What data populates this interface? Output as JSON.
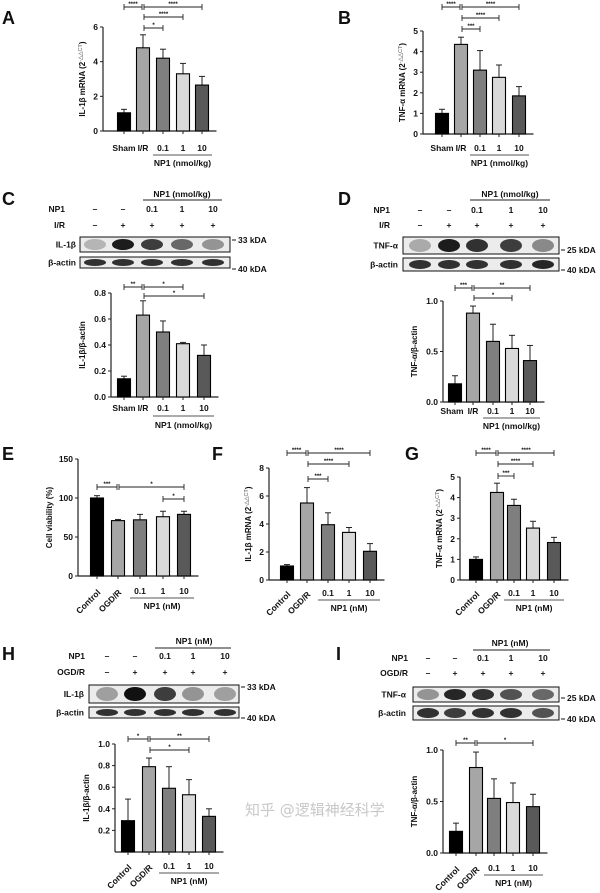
{
  "watermark": "知乎 @逻辑神经科学",
  "colors": {
    "bars": [
      "#000000",
      "#a6a6a6",
      "#7f7f7f",
      "#d9d9d9",
      "#595959"
    ],
    "edge": "#000000"
  },
  "chart_data": [
    {
      "panel": "A",
      "type": "bar",
      "categories": [
        "Sham",
        "I/R",
        "0.1",
        "1",
        "10"
      ],
      "group_label": "NP1 (nmol/kg)",
      "values": [
        1.05,
        4.8,
        4.2,
        3.3,
        2.65
      ],
      "errors": [
        0.2,
        0.75,
        0.52,
        0.6,
        0.5
      ],
      "ylabel": "IL-1β mRNA (2",
      "ylabel_sup": "-△△CT",
      "ylabel_end": ")",
      "ylim": [
        0,
        6
      ],
      "yticks": [
        "0",
        "2",
        "4",
        "6"
      ],
      "ytick_values": [
        0,
        2,
        4,
        6
      ],
      "significance": [
        {
          "from": 0,
          "to": 1,
          "label": "****",
          "row": 0
        },
        {
          "from": 1,
          "to": 4,
          "label": "****",
          "row": 0
        },
        {
          "from": 1,
          "to": 3,
          "label": "****",
          "row": 1
        },
        {
          "from": 1,
          "to": 2,
          "label": "*",
          "row": 2
        }
      ]
    },
    {
      "panel": "B",
      "type": "bar",
      "categories": [
        "Sham",
        "I/R",
        "0.1",
        "1",
        "10"
      ],
      "group_label": "NP1 (nmol/kg)",
      "values": [
        1.0,
        4.35,
        3.1,
        2.75,
        1.85
      ],
      "errors": [
        0.2,
        0.35,
        0.95,
        0.6,
        0.45
      ],
      "ylabel": "TNF-α mRNA (2",
      "ylabel_sup": "-△△CT",
      "ylabel_end": ")",
      "ylim": [
        0,
        5
      ],
      "yticks": [
        "0",
        "1",
        "2",
        "3",
        "4",
        "5"
      ],
      "ytick_values": [
        0,
        1,
        2,
        3,
        4,
        5
      ],
      "significance": [
        {
          "from": 0,
          "to": 1,
          "label": "****",
          "row": 0
        },
        {
          "from": 1,
          "to": 4,
          "label": "****",
          "row": 0
        },
        {
          "from": 1,
          "to": 3,
          "label": "****",
          "row": 1
        },
        {
          "from": 1,
          "to": 2,
          "label": "***",
          "row": 2
        }
      ]
    },
    {
      "panel": "C",
      "type": "bar",
      "categories": [
        "Sham",
        "I/R",
        "0.1",
        "1",
        "10"
      ],
      "group_label": "NP1 (nmol/kg)",
      "values": [
        0.14,
        0.63,
        0.5,
        0.41,
        0.32
      ],
      "errors": [
        0.02,
        0.11,
        0.085,
        0.01,
        0.08
      ],
      "ylabel": "IL-1β/β-actin",
      "ylim": [
        0,
        0.8
      ],
      "yticks": [
        "0.0",
        "0.2",
        "0.4",
        "0.6",
        "0.8"
      ],
      "ytick_values": [
        0,
        0.2,
        0.4,
        0.6,
        0.8
      ],
      "significance": [
        {
          "from": 0,
          "to": 1,
          "label": "**",
          "row": 0
        },
        {
          "from": 1,
          "to": 3,
          "label": "*",
          "row": 0
        },
        {
          "from": 1,
          "to": 4,
          "label": "*",
          "row": 1
        }
      ]
    },
    {
      "panel": "D",
      "type": "bar",
      "categories": [
        "Sham",
        "I/R",
        "0.1",
        "1",
        "10"
      ],
      "group_label": "NP1 (nmol/kg)",
      "values": [
        0.18,
        0.88,
        0.6,
        0.53,
        0.41
      ],
      "errors": [
        0.08,
        0.07,
        0.17,
        0.13,
        0.15
      ],
      "ylabel": "TNF-α/β-actin",
      "ylim": [
        0,
        1.0
      ],
      "yticks": [
        "0.0",
        "0.5",
        "1.0"
      ],
      "ytick_values": [
        0,
        0.5,
        1.0
      ],
      "significance": [
        {
          "from": 0,
          "to": 1,
          "label": "***",
          "row": 0
        },
        {
          "from": 1,
          "to": 4,
          "label": "**",
          "row": 0
        },
        {
          "from": 1,
          "to": 3,
          "label": "*",
          "row": 1
        }
      ]
    },
    {
      "panel": "E",
      "type": "bar",
      "categories": [
        "Control",
        "OGD/R",
        "0.1",
        "1",
        "10"
      ],
      "group_label": "NP1 (nM)",
      "values": [
        100,
        71,
        72,
        76,
        79
      ],
      "errors": [
        3,
        1.5,
        7,
        7,
        4
      ],
      "ylabel": "Cell viability (%)",
      "ylim": [
        0,
        150
      ],
      "yticks": [
        "0",
        "50",
        "100",
        "150"
      ],
      "ytick_values": [
        0,
        50,
        100,
        150
      ],
      "significance": [
        {
          "from": 0,
          "to": 1,
          "label": "***",
          "row": 0
        },
        {
          "from": 1,
          "to": 4,
          "label": "*",
          "row": 0
        },
        {
          "from": 3,
          "to": 4,
          "label": "*",
          "row": 1
        }
      ]
    },
    {
      "panel": "F",
      "type": "bar",
      "categories": [
        "Control",
        "OGD/R",
        "0.1",
        "1",
        "10"
      ],
      "group_label": "NP1 (nM)",
      "values": [
        1.0,
        5.5,
        3.95,
        3.4,
        2.05
      ],
      "errors": [
        0.1,
        1.1,
        0.85,
        0.35,
        0.55
      ],
      "ylabel": "IL-1β mRNA (2",
      "ylabel_sup": "-△△CT",
      "ylabel_end": ")",
      "ylim": [
        0,
        8
      ],
      "yticks": [
        "0",
        "2",
        "4",
        "6",
        "8"
      ],
      "ytick_values": [
        0,
        2,
        4,
        6,
        8
      ],
      "significance": [
        {
          "from": 0,
          "to": 1,
          "label": "****",
          "row": 0
        },
        {
          "from": 1,
          "to": 4,
          "label": "****",
          "row": 0
        },
        {
          "from": 1,
          "to": 3,
          "label": "****",
          "row": 1
        },
        {
          "from": 1,
          "to": 2,
          "label": "***",
          "row": 2
        }
      ]
    },
    {
      "panel": "G",
      "type": "bar",
      "categories": [
        "Control",
        "OGD/R",
        "0.1",
        "1",
        "10"
      ],
      "group_label": "NP1 (nM)",
      "values": [
        1.0,
        4.25,
        3.62,
        2.52,
        1.82
      ],
      "errors": [
        0.12,
        0.45,
        0.3,
        0.33,
        0.25
      ],
      "ylabel": "TNF-α mRNA (2",
      "ylabel_sup": "-△△CT",
      "ylabel_end": ")",
      "ylim": [
        0,
        5
      ],
      "yticks": [
        "0",
        "1",
        "2",
        "3",
        "4",
        "5"
      ],
      "ytick_values": [
        0,
        1,
        2,
        3,
        4,
        5
      ],
      "significance": [
        {
          "from": 0,
          "to": 1,
          "label": "****",
          "row": 0
        },
        {
          "from": 1,
          "to": 4,
          "label": "****",
          "row": 0
        },
        {
          "from": 1,
          "to": 3,
          "label": "****",
          "row": 1
        },
        {
          "from": 1,
          "to": 2,
          "label": "***",
          "row": 2
        }
      ]
    },
    {
      "panel": "H",
      "type": "bar",
      "categories": [
        "Control",
        "OGD/R",
        "0.1",
        "1",
        "10"
      ],
      "group_label": "NP1 (nM)",
      "values": [
        0.29,
        0.79,
        0.59,
        0.53,
        0.33
      ],
      "errors": [
        0.2,
        0.08,
        0.2,
        0.14,
        0.07
      ],
      "ylabel": "IL-1β/β-actin",
      "ylim": [
        0,
        1.0
      ],
      "yticks": [
        "0.2",
        "0.4",
        "0.6",
        "0.8",
        "1.0"
      ],
      "ytick_values": [
        0.2,
        0.4,
        0.6,
        0.8,
        1.0
      ],
      "significance": [
        {
          "from": 0,
          "to": 1,
          "label": "*",
          "row": 0
        },
        {
          "from": 1,
          "to": 4,
          "label": "**",
          "row": 0
        },
        {
          "from": 1,
          "to": 3,
          "label": "*",
          "row": 1
        }
      ]
    },
    {
      "panel": "I",
      "type": "bar",
      "categories": [
        "Control",
        "OGD/R",
        "0.1",
        "1",
        "10"
      ],
      "group_label": "NP1 (nM)",
      "values": [
        0.21,
        0.83,
        0.53,
        0.49,
        0.45
      ],
      "errors": [
        0.08,
        0.15,
        0.19,
        0.19,
        0.12
      ],
      "ylabel": "TNF-α/β-actin",
      "ylim": [
        0,
        1.0
      ],
      "yticks": [
        "0.0",
        "0.5",
        "1.0"
      ],
      "ytick_values": [
        0,
        0.5,
        1.0
      ],
      "significance": [
        {
          "from": 0,
          "to": 1,
          "label": "**",
          "row": 0
        },
        {
          "from": 1,
          "to": 4,
          "label": "*",
          "row": 0
        }
      ]
    }
  ],
  "blots": [
    {
      "panel": "C",
      "header": "NP1 (nmol/kg)",
      "rows": [
        {
          "label": "NP1",
          "values": [
            "–",
            "–",
            "0.1",
            "1",
            "10"
          ]
        },
        {
          "label": "I/R",
          "values": [
            "–",
            "+",
            "+",
            "+",
            "+"
          ]
        }
      ],
      "proteins": [
        {
          "label": "IL-1β",
          "marker": "33 kDA"
        },
        {
          "label": "β-actin",
          "marker": "40 kDA"
        }
      ]
    },
    {
      "panel": "D",
      "header": "NP1 (nmol/kg)",
      "rows": [
        {
          "label": "NP1",
          "values": [
            "–",
            "–",
            "0.1",
            "1",
            "10"
          ]
        },
        {
          "label": "I/R",
          "values": [
            "–",
            "+",
            "+",
            "+",
            "+"
          ]
        }
      ],
      "proteins": [
        {
          "label": "TNF-α",
          "marker": "25 kDA"
        },
        {
          "label": "β-actin",
          "marker": "40 kDA"
        }
      ]
    },
    {
      "panel": "H",
      "header": "NP1 (nM)",
      "rows": [
        {
          "label": "NP1",
          "values": [
            "–",
            "–",
            "0.1",
            "1",
            "10"
          ]
        },
        {
          "label": "OGD/R",
          "values": [
            "–",
            "+",
            "+",
            "+",
            "+"
          ]
        }
      ],
      "proteins": [
        {
          "label": "IL-1β",
          "marker": "33 kDA"
        },
        {
          "label": "β-actin",
          "marker": "40 kDA"
        }
      ]
    },
    {
      "panel": "I",
      "header": "NP1 (nM)",
      "rows": [
        {
          "label": "NP1",
          "values": [
            "–",
            "–",
            "0.1",
            "1",
            "10"
          ]
        },
        {
          "label": "OGD/R",
          "values": [
            "–",
            "+",
            "+",
            "+",
            "+"
          ]
        }
      ],
      "proteins": [
        {
          "label": "TNF-α",
          "marker": "25 kDA"
        },
        {
          "label": "β-actin",
          "marker": "40 kDA"
        }
      ]
    }
  ]
}
